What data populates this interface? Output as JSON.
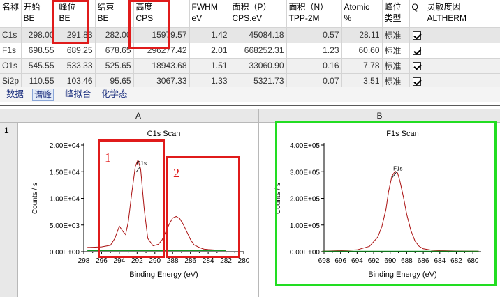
{
  "table": {
    "headers": [
      {
        "line1": "名称",
        "line2": ""
      },
      {
        "line1": "开始",
        "line2": "BE"
      },
      {
        "line1": "峰位",
        "line2": "BE"
      },
      {
        "line1": "结束",
        "line2": "BE"
      },
      {
        "line1": "高度",
        "line2": "CPS"
      },
      {
        "line1": "FWHM",
        "line2": "eV"
      },
      {
        "line1": "面积（P）",
        "line2": "CPS.eV"
      },
      {
        "line1": "面积（N）",
        "line2": "TPP-2M"
      },
      {
        "line1": "Atomic",
        "line2": "%"
      },
      {
        "line1": "峰位",
        "line2": "类型"
      },
      {
        "line1": "Q",
        "line2": ""
      },
      {
        "line1": "灵敏度因",
        "line2": "ALTHERM"
      }
    ],
    "rows": [
      {
        "name": "C1s",
        "start": "298.00",
        "peak": "291.83",
        "end": "282.00",
        "height": "15979.57",
        "fwhm": "1.42",
        "area_p": "45084.18",
        "area_n": "0.57",
        "atomic": "28.11",
        "type": "标准",
        "checked": true
      },
      {
        "name": "F1s",
        "start": "698.55",
        "peak": "689.25",
        "end": "678.65",
        "height": "296277.42",
        "fwhm": "2.01",
        "area_p": "668252.31",
        "area_n": "1.23",
        "atomic": "60.60",
        "type": "标准",
        "checked": true
      },
      {
        "name": "O1s",
        "start": "545.55",
        "peak": "533.33",
        "end": "525.65",
        "height": "18943.68",
        "fwhm": "1.51",
        "area_p": "33060.90",
        "area_n": "0.16",
        "atomic": "7.78",
        "type": "标准",
        "checked": true
      },
      {
        "name": "Si2p",
        "start": "110.55",
        "peak": "103.46",
        "end": "95.65",
        "height": "3067.33",
        "fwhm": "1.33",
        "area_p": "5321.73",
        "area_n": "0.07",
        "atomic": "3.51",
        "type": "标准",
        "checked": true
      }
    ]
  },
  "tabs": [
    "数据",
    "谱峰",
    "峰拟合",
    "化学态"
  ],
  "active_tab": "谱峰",
  "grid": {
    "col_a": "A",
    "col_b": "B",
    "row_1": "1"
  },
  "annotations": {
    "box1": "1",
    "box2": "2"
  },
  "chart_data": [
    {
      "type": "line",
      "title": "C1s Scan",
      "xlabel": "Binding Energy (eV)",
      "ylabel": "Counts / s",
      "x_reversed": true,
      "xlim": [
        298,
        280
      ],
      "ylim": [
        0,
        20000
      ],
      "xticks": [
        "298",
        "296",
        "294",
        "292",
        "290",
        "288",
        "286",
        "284",
        "282",
        "280"
      ],
      "yticks": [
        "0.00E+00",
        "5.00E+03",
        "1.00E+04",
        "1.50E+04",
        "2.00E+04"
      ],
      "peak_label": "C1s",
      "peak_label_pos": [
        291.8,
        17000
      ],
      "series": [
        {
          "color": "#aa1111",
          "x": [
            297.6,
            296,
            295,
            294.5,
            294,
            293.6,
            293.3,
            293,
            292.6,
            292.2,
            291.9,
            291.6,
            291.2,
            290.8,
            290.2,
            289.6,
            289.2,
            288.8,
            288.4,
            288,
            287.6,
            287.2,
            286.8,
            286.4,
            286,
            285.6,
            285,
            284.5,
            284,
            283,
            282
          ],
          "y": [
            800,
            900,
            1200,
            2500,
            4800,
            3800,
            3200,
            5500,
            11000,
            16000,
            17200,
            15500,
            8000,
            2500,
            1100,
            1400,
            2200,
            3600,
            5100,
            6300,
            6600,
            6200,
            5100,
            3700,
            2300,
            1300,
            800,
            500,
            400,
            300,
            300
          ]
        },
        {
          "color": "#119922",
          "x": [
            297.6,
            282
          ],
          "y": [
            200,
            200
          ]
        }
      ]
    },
    {
      "type": "line",
      "title": "F1s Scan",
      "xlabel": "Binding Energy (eV)",
      "ylabel": "Counts / s",
      "x_reversed": true,
      "xlim": [
        698,
        679
      ],
      "ylim": [
        0,
        400000
      ],
      "xticks": [
        "698",
        "696",
        "694",
        "692",
        "690",
        "688",
        "686",
        "684",
        "682",
        "680"
      ],
      "yticks": [
        "0.00E+00",
        "1.00E+05",
        "2.00E+05",
        "3.00E+05",
        "4.00E+05"
      ],
      "peak_label": "F1s",
      "peak_label_pos": [
        689.4,
        320000
      ],
      "series": [
        {
          "color": "#aa1111",
          "x": [
            698.2,
            696,
            694,
            692.5,
            691.5,
            691,
            690.5,
            690.2,
            689.8,
            689.4,
            689.1,
            688.8,
            688.4,
            688,
            687.5,
            687,
            686.5,
            686,
            685,
            684,
            682,
            679.3
          ],
          "y": [
            2000,
            4000,
            7000,
            20000,
            55000,
            95000,
            160000,
            225000,
            282000,
            302000,
            295000,
            262000,
            205000,
            140000,
            80000,
            40000,
            20000,
            11000,
            6000,
            4000,
            2500,
            2000
          ]
        },
        {
          "color": "#119922",
          "x": [
            698.2,
            679.3
          ],
          "y": [
            2000,
            2000
          ]
        }
      ]
    }
  ]
}
